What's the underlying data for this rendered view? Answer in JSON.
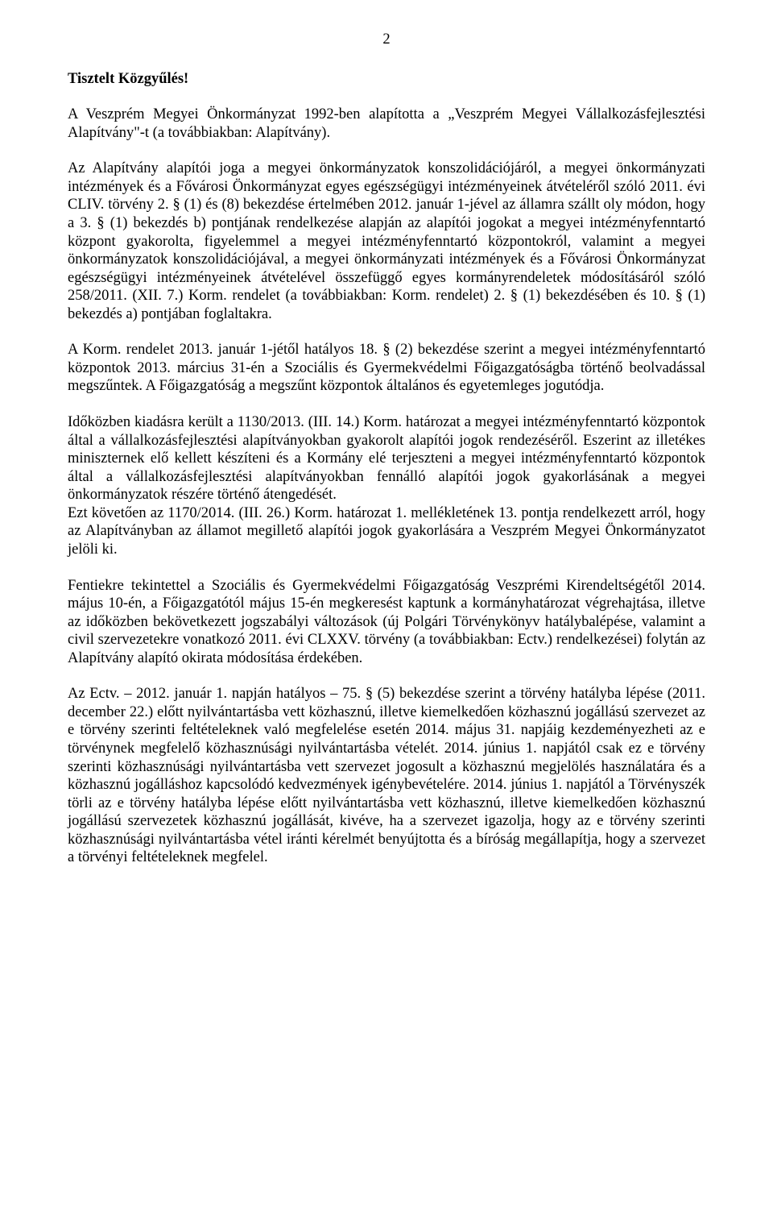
{
  "pageNumber": "2",
  "heading": "Tisztelt Közgyűlés!",
  "paragraphs": [
    "A Veszprém Megyei Önkormányzat 1992-ben alapította a „Veszprém Megyei Vállalkozásfejlesztési Alapítvány\"-t (a továbbiakban: Alapítvány).",
    "Az Alapítvány alapítói joga a megyei önkormányzatok konszolidációjáról, a megyei önkormányzati intézmények és a Fővárosi Önkormányzat egyes egészségügyi intézményeinek átvételéről szóló 2011. évi CLIV. törvény 2. § (1) és (8) bekezdése értelmében 2012. január 1-jével az államra szállt oly módon, hogy a 3. § (1) bekezdés b) pontjának rendelkezése alapján az alapítói jogokat a megyei intézményfenntartó központ gyakorolta, figyelemmel a megyei intézményfenntartó központokról, valamint a megyei önkormányzatok konszolidációjával, a megyei önkormányzati intézmények és a Fővárosi Önkormányzat egészségügyi intézményeinek átvételével összefüggő egyes kormányrendeletek módosításáról szóló 258/2011. (XII. 7.) Korm. rendelet (a továbbiakban: Korm. rendelet) 2. § (1) bekezdésében és 10. § (1) bekezdés a) pontjában foglaltakra.",
    "A Korm. rendelet 2013. január 1-jétől hatályos 18. § (2) bekezdése szerint a megyei intézményfenntartó központok 2013. március 31-én a Szociális és Gyermekvédelmi Főigazgatóságba történő beolvadással megszűntek. A Főigazgatóság a megszűnt központok általános és egyetemleges jogutódja.",
    "Időközben kiadásra került a 1130/2013. (III. 14.) Korm. határozat a megyei intézményfenntartó központok által a vállalkozásfejlesztési alapítványokban gyakorolt alapítói jogok rendezéséről. Eszerint az illetékes miniszternek elő kellett készíteni és a Kormány elé terjeszteni a megyei intézményfenntartó központok által a vállalkozásfejlesztési alapítványokban fennálló alapítói jogok gyakorlásának a megyei önkormányzatok részére történő átengedését.\nEzt követően az 1170/2014. (III. 26.) Korm. határozat 1. mellékletének 13. pontja rendelkezett arról, hogy az Alapítványban az államot megillető alapítói jogok gyakorlására a Veszprém Megyei Önkormányzatot jelöli ki.",
    "Fentiekre tekintettel a Szociális és Gyermekvédelmi Főigazgatóság Veszprémi Kirendeltségétől 2014. május 10-én, a Főigazgatótól május 15-én megkeresést kaptunk a kormányhatározat végrehajtása, illetve az időközben bekövetkezett jogszabályi változások (új Polgári Törvénykönyv hatálybalépése, valamint a civil szervezetekre vonatkozó 2011. évi CLXXV. törvény (a továbbiakban: Ectv.) rendelkezései) folytán az Alapítvány alapító okirata módosítása érdekében.",
    "Az Ectv. – 2012. január 1. napján hatályos – 75. § (5) bekezdése szerint a törvény hatályba lépése (2011. december 22.) előtt nyilvántartásba vett közhasznú, illetve kiemelkedően közhasznú jogállású szervezet az e törvény szerinti feltételeknek való megfelelése esetén 2014. május 31. napjáig kezdeményezheti az e törvénynek megfelelő közhasznúsági nyilvántartásba vételét. 2014. június 1. napjától csak ez e törvény szerinti közhasznúsági nyilvántartásba vett szervezet jogosult a közhasznú megjelölés használatára és a közhasznú jogálláshoz kapcsolódó kedvezmények igénybevételére. 2014. június 1. napjától a Törvényszék törli az e törvény hatályba lépése előtt nyilvántartásba vett közhasznú, illetve kiemelkedően közhasznú jogállású szervezetek közhasznú jogállását, kivéve, ha a szervezet igazolja, hogy az e törvény szerinti közhasznúsági nyilvántartásba vétel iránti kérelmét benyújtotta és a bíróság megállapítja, hogy a szervezet a törvényi feltételeknek megfelel."
  ]
}
